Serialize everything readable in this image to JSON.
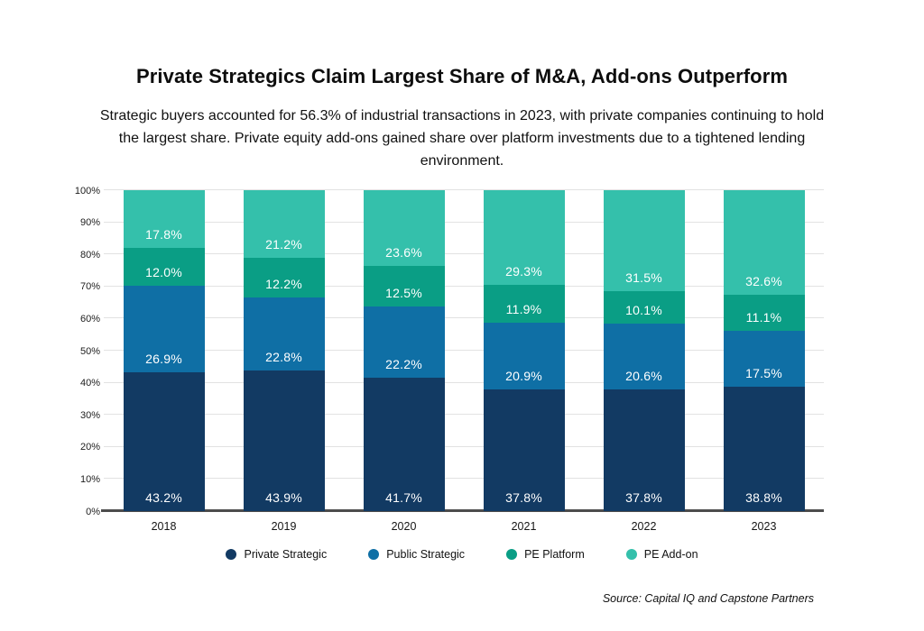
{
  "header": {
    "title": "Private Strategics Claim Largest Share of M&A, Add-ons Outperform",
    "subtitle": "Strategic buyers accounted for 56.3% of industrial transactions in 2023, with private companies continuing to hold the largest share. Private equity add-ons gained share over platform investments due to a tightened lending environment."
  },
  "chart_data": {
    "type": "bar",
    "stacked": true,
    "title": "Private Strategics Claim Largest Share of M&A, Add-ons Outperform",
    "categories": [
      "2018",
      "2019",
      "2020",
      "2021",
      "2022",
      "2023"
    ],
    "series": [
      {
        "name": "Private Strategic",
        "color": "#123A63",
        "values": [
          43.2,
          43.9,
          41.7,
          37.8,
          37.8,
          38.8
        ]
      },
      {
        "name": "Public Strategic",
        "color": "#0F6FA5",
        "values": [
          26.9,
          22.8,
          22.2,
          20.9,
          20.6,
          17.5
        ]
      },
      {
        "name": "PE Platform",
        "color": "#0A9E85",
        "values": [
          12.0,
          12.2,
          12.5,
          11.9,
          10.1,
          11.1
        ]
      },
      {
        "name": "PE Add-on",
        "color": "#34C0AB",
        "values": [
          17.8,
          21.2,
          23.6,
          29.3,
          31.5,
          32.6
        ]
      }
    ],
    "value_suffix": "%",
    "ylim": [
      0,
      100
    ],
    "y_ticks": [
      "0%",
      "10%",
      "20%",
      "30%",
      "40%",
      "50%",
      "60%",
      "70%",
      "80%",
      "90%",
      "100%"
    ],
    "grid": true,
    "gridline_color": "#e2e2e2",
    "axis_line_color": "#4d4d4d",
    "label_text_color": "#ffffff",
    "legend_position": "bottom",
    "xlabel": "",
    "ylabel": ""
  },
  "source": "Source: Capital IQ and Capstone Partners"
}
